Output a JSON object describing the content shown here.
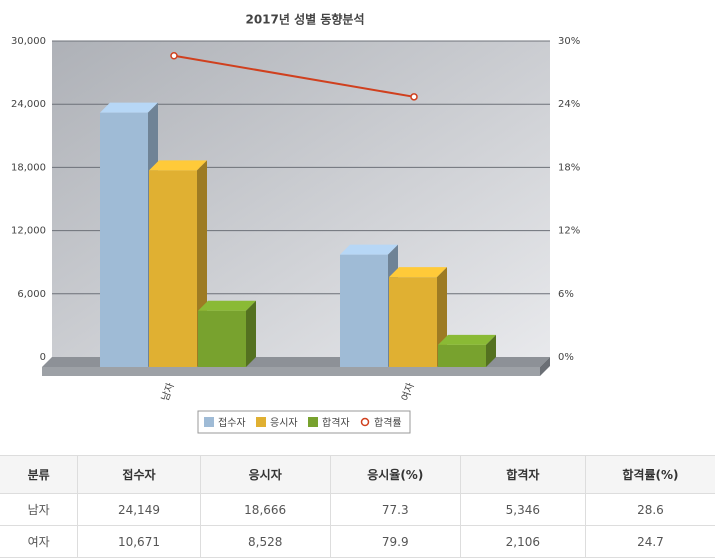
{
  "chart_data": {
    "type": "bar",
    "title": "2017년 성별 동향분석",
    "categories": [
      "남자",
      "여자"
    ],
    "series": [
      {
        "name": "접수자",
        "color": "#9fbbd6",
        "values": [
          24149,
          10671
        ]
      },
      {
        "name": "응시자",
        "color": "#e0b032",
        "values": [
          18666,
          8528
        ]
      },
      {
        "name": "합격자",
        "color": "#78a22e",
        "values": [
          5346,
          2106
        ]
      },
      {
        "name": "합격률",
        "color": "#d0401e",
        "type": "line",
        "axis": "y2",
        "values": [
          28.6,
          24.7
        ]
      }
    ],
    "ylim": [
      0,
      30000
    ],
    "yticks": [
      0,
      {
        "value": 6000,
        "label": "6,000"
      },
      {
        "value": 12000,
        "label": "12,000"
      },
      {
        "value": 18000,
        "label": "18,000"
      },
      {
        "value": 24000,
        "label": "24,000"
      },
      {
        "value": 30000,
        "label": "30,000"
      }
    ],
    "y2lim": [
      0,
      30
    ],
    "y2ticks": [
      {
        "value": 0,
        "label": "0%"
      },
      {
        "value": 6,
        "label": "6%"
      },
      {
        "value": 12,
        "label": "12%"
      },
      {
        "value": 18,
        "label": "18%"
      },
      {
        "value": 24,
        "label": "24%"
      },
      {
        "value": 30,
        "label": "30%"
      }
    ],
    "grid": true,
    "legend": "bottom"
  },
  "table": {
    "header": [
      "분류",
      "접수자",
      "응시자",
      "응시율(%)",
      "합격자",
      "합격률(%)"
    ],
    "rows": [
      [
        "남자",
        "24,149",
        "18,666",
        "77.3",
        "5,346",
        "28.6"
      ],
      [
        "여자",
        "10,671",
        "8,528",
        "79.9",
        "2,106",
        "24.7"
      ]
    ]
  }
}
